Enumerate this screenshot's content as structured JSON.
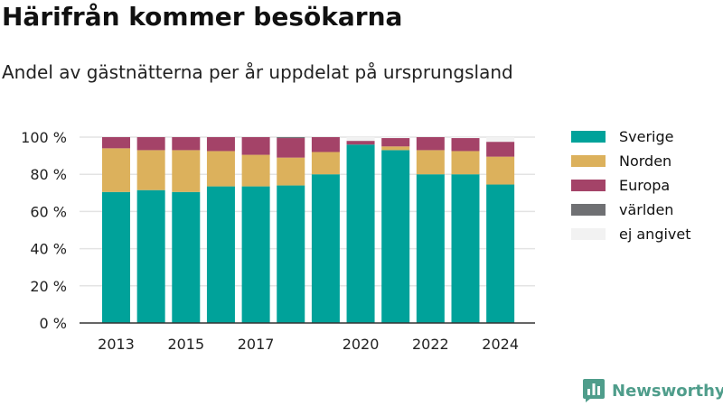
{
  "header": {
    "title": "Härifrån kommer besökarna",
    "subtitle": "Andel av gästnätterna per år uppdelat på ursprungsland"
  },
  "brand": {
    "name": "Newsworthy",
    "icon": "bar-chart-logo-icon",
    "color": "#4f9d8b"
  },
  "chart_data": {
    "type": "bar",
    "stacked": true,
    "categories": [
      "2013",
      "2014",
      "2015",
      "2016",
      "2017",
      "2018",
      "2019",
      "2020",
      "2021",
      "2022",
      "2023",
      "2024"
    ],
    "x_tick_labels": [
      "2013",
      "",
      "2015",
      "",
      "2017",
      "",
      "",
      "2020",
      "",
      "2022",
      "",
      "2024"
    ],
    "y_ticks": [
      0,
      20,
      40,
      60,
      80,
      100
    ],
    "y_tick_labels": [
      "0 %",
      "20 %",
      "40 %",
      "60 %",
      "80 %",
      "100 %"
    ],
    "ylim": [
      0,
      100
    ],
    "ylabel": "",
    "xlabel": "",
    "grid": true,
    "legend_position": "right",
    "series": [
      {
        "name": "Sverige",
        "color": "#00a29a",
        "values": [
          70.5,
          71.5,
          70.5,
          73.5,
          73.5,
          74,
          80,
          96,
          93,
          80,
          80,
          74.5
        ]
      },
      {
        "name": "Norden",
        "color": "#dcb15c",
        "values": [
          23.5,
          21.5,
          22.5,
          19,
          17,
          15,
          12,
          0,
          2,
          13,
          12.5,
          15
        ]
      },
      {
        "name": "Europa",
        "color": "#a44368",
        "values": [
          6,
          7,
          7,
          7.5,
          9.5,
          10.5,
          8,
          2,
          4.5,
          7,
          7,
          8
        ]
      },
      {
        "name": "världen",
        "color": "#6f7073",
        "values": [
          0,
          0,
          0,
          0,
          0,
          0.5,
          0,
          0,
          0,
          0,
          0,
          0
        ]
      },
      {
        "name": "ej angivet",
        "color": "#f2f2f2",
        "values": [
          0,
          0,
          0,
          0,
          0,
          0,
          0,
          2,
          0.5,
          0,
          0.5,
          2.5
        ]
      }
    ]
  }
}
